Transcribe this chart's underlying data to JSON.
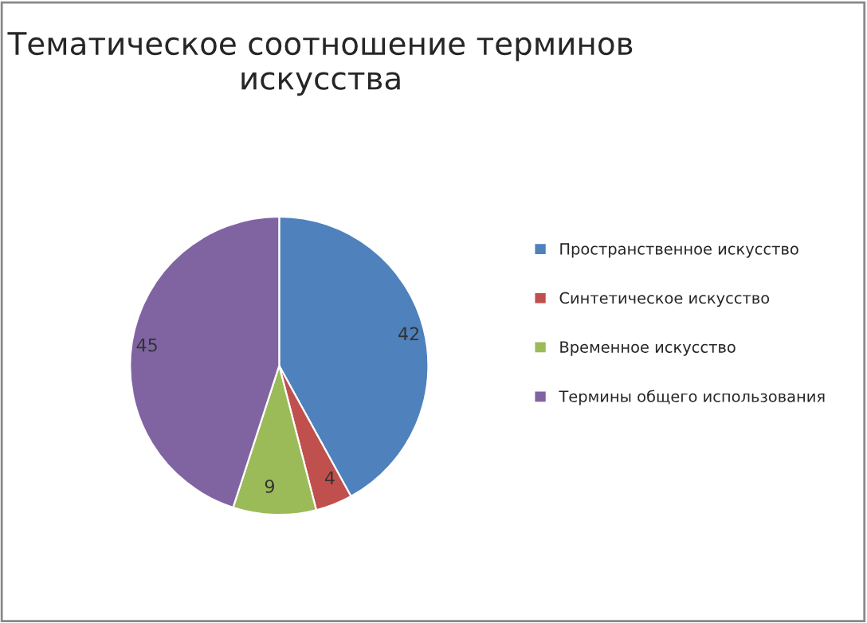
{
  "chart_data": {
    "type": "pie",
    "title": "Тематическое соотношение терминов искусства",
    "categories": [
      "Пространственное искусство",
      "Синтетическое искусство",
      "Временное искусство",
      "Термины общего использования"
    ],
    "values": [
      42,
      4,
      9,
      45
    ],
    "colors": [
      "#4f81bd",
      "#c0504d",
      "#9bbb59",
      "#8064a2"
    ],
    "data_labels": true,
    "legend": "right"
  }
}
